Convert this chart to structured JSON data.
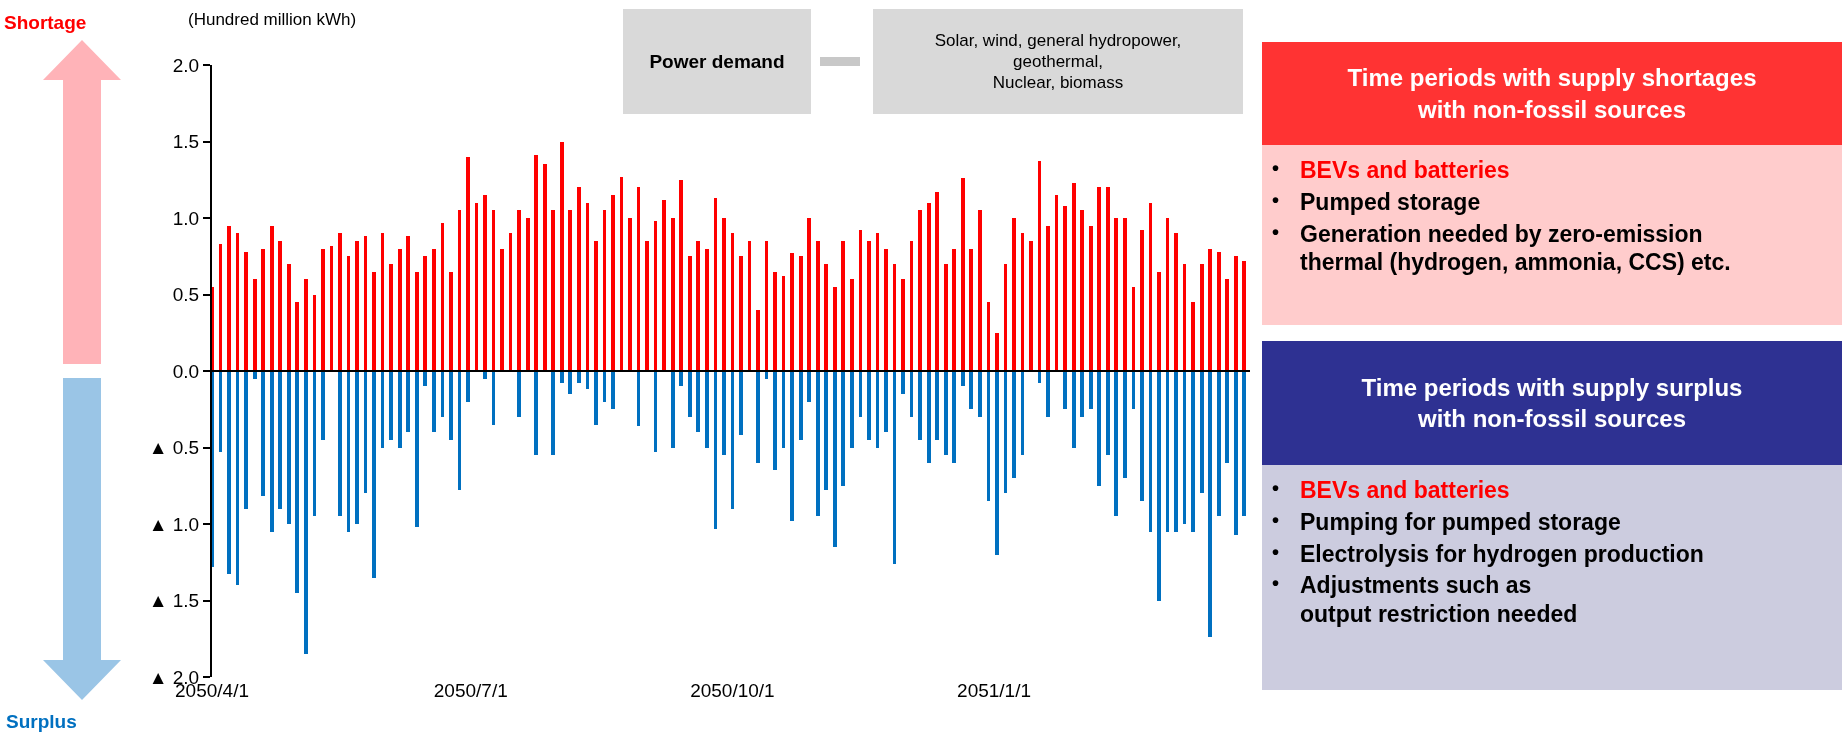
{
  "chart_data": {
    "type": "bar",
    "ylabel": "(Hundred million kWh)",
    "x": [
      "2050-04-01",
      "2050-04-04",
      "2050-04-07",
      "2050-04-10",
      "2050-04-13",
      "2050-04-16",
      "2050-04-19",
      "2050-04-22",
      "2050-04-25",
      "2050-04-28",
      "2050-05-01",
      "2050-05-04",
      "2050-05-07",
      "2050-05-10",
      "2050-05-13",
      "2050-05-16",
      "2050-05-19",
      "2050-05-22",
      "2050-05-25",
      "2050-05-28",
      "2050-05-31",
      "2050-06-03",
      "2050-06-06",
      "2050-06-09",
      "2050-06-12",
      "2050-06-15",
      "2050-06-18",
      "2050-06-21",
      "2050-06-24",
      "2050-06-27",
      "2050-06-30",
      "2050-07-03",
      "2050-07-06",
      "2050-07-09",
      "2050-07-12",
      "2050-07-15",
      "2050-07-18",
      "2050-07-21",
      "2050-07-24",
      "2050-07-27",
      "2050-07-30",
      "2050-08-02",
      "2050-08-05",
      "2050-08-08",
      "2050-08-11",
      "2050-08-14",
      "2050-08-17",
      "2050-08-20",
      "2050-08-23",
      "2050-08-26",
      "2050-08-29",
      "2050-09-01",
      "2050-09-04",
      "2050-09-07",
      "2050-09-10",
      "2050-09-13",
      "2050-09-16",
      "2050-09-19",
      "2050-09-22",
      "2050-09-25",
      "2050-09-28",
      "2050-10-01",
      "2050-10-04",
      "2050-10-07",
      "2050-10-10",
      "2050-10-13",
      "2050-10-16",
      "2050-10-19",
      "2050-10-22",
      "2050-10-25",
      "2050-10-28",
      "2050-10-31",
      "2050-11-03",
      "2050-11-06",
      "2050-11-09",
      "2050-11-12",
      "2050-11-15",
      "2050-11-18",
      "2050-11-21",
      "2050-11-24",
      "2050-11-27",
      "2050-11-30",
      "2050-12-03",
      "2050-12-06",
      "2050-12-09",
      "2050-12-12",
      "2050-12-15",
      "2050-12-18",
      "2050-12-21",
      "2050-12-24",
      "2050-12-27",
      "2050-12-30",
      "2051-01-02",
      "2051-01-05",
      "2051-01-08",
      "2051-01-11",
      "2051-01-14",
      "2051-01-17",
      "2051-01-20",
      "2051-01-23",
      "2051-01-26",
      "2051-01-29",
      "2051-02-01",
      "2051-02-04",
      "2051-02-07",
      "2051-02-10",
      "2051-02-13",
      "2051-02-16",
      "2051-02-19",
      "2051-02-22",
      "2051-02-25",
      "2051-02-28",
      "2051-03-03",
      "2051-03-06",
      "2051-03-09",
      "2051-03-12",
      "2051-03-15",
      "2051-03-18",
      "2051-03-21",
      "2051-03-24",
      "2051-03-27",
      "2051-03-30"
    ],
    "series": [
      {
        "color": "#ff0000",
        "values": [
          0.55,
          0.83,
          0.95,
          0.9,
          0.78,
          0.6,
          0.8,
          0.95,
          0.85,
          0.7,
          0.45,
          0.6,
          0.5,
          0.8,
          0.82,
          0.9,
          0.75,
          0.85,
          0.88,
          0.65,
          0.9,
          0.7,
          0.8,
          0.88,
          0.65,
          0.75,
          0.8,
          0.97,
          0.65,
          1.05,
          1.4,
          1.1,
          1.15,
          1.05,
          0.8,
          0.9,
          1.05,
          1.0,
          1.41,
          1.35,
          1.05,
          1.5,
          1.05,
          1.2,
          1.1,
          0.85,
          1.05,
          1.15,
          1.27,
          1.0,
          1.2,
          0.85,
          0.98,
          1.12,
          1.0,
          1.25,
          0.75,
          0.85,
          0.8,
          1.13,
          1.0,
          0.9,
          0.75,
          0.85,
          0.4,
          0.85,
          0.65,
          0.62,
          0.77,
          0.75,
          1.0,
          0.85,
          0.7,
          0.55,
          0.85,
          0.6,
          0.92,
          0.85,
          0.9,
          0.8,
          0.7,
          0.6,
          0.85,
          1.05,
          1.1,
          1.17,
          0.7,
          0.8,
          1.26,
          0.8,
          1.05,
          0.45,
          0.25,
          0.7,
          1.0,
          0.9,
          0.85,
          1.37,
          0.95,
          1.15,
          1.08,
          1.23,
          1.05,
          0.95,
          1.2,
          1.2,
          1.0,
          1.0,
          0.55,
          0.92,
          1.1,
          0.65,
          1.0,
          0.9,
          0.7,
          0.45,
          0.7,
          0.8,
          0.78,
          0.6,
          0.75,
          0.72
        ]
      },
      {
        "color": "#0070c0",
        "values": [
          -1.28,
          -0.53,
          -1.33,
          -1.4,
          -0.9,
          -0.05,
          -0.82,
          -1.05,
          -0.9,
          -1.0,
          -1.45,
          -1.85,
          -0.95,
          -0.45,
          0,
          -0.95,
          -1.05,
          -1.0,
          -0.8,
          -1.35,
          -0.5,
          -0.45,
          -0.5,
          -0.4,
          -1.02,
          -0.1,
          -0.4,
          -0.3,
          -0.45,
          -0.78,
          -0.2,
          0,
          -0.05,
          -0.35,
          0,
          0,
          -0.3,
          0,
          -0.55,
          0,
          -0.55,
          -0.08,
          -0.15,
          -0.08,
          -0.12,
          -0.35,
          -0.2,
          -0.25,
          0,
          0,
          -0.36,
          0,
          -0.53,
          0,
          -0.5,
          -0.1,
          -0.3,
          -0.4,
          -0.5,
          -1.03,
          -0.55,
          -0.9,
          -0.42,
          0,
          -0.6,
          -0.05,
          -0.65,
          -0.5,
          -0.98,
          -0.45,
          -0.2,
          -0.95,
          -0.78,
          -1.15,
          -0.75,
          -0.5,
          -0.3,
          -0.45,
          -0.5,
          -0.4,
          -1.26,
          -0.15,
          -0.3,
          -0.45,
          -0.6,
          -0.45,
          -0.55,
          -0.6,
          -0.1,
          -0.25,
          -0.3,
          -0.85,
          -1.2,
          -0.8,
          -0.7,
          -0.55,
          0,
          -0.08,
          -0.3,
          0,
          -0.25,
          -0.5,
          -0.3,
          -0.25,
          -0.75,
          -0.55,
          -0.95,
          -0.7,
          -0.25,
          -0.85,
          -1.05,
          -1.5,
          -1.05,
          -1.05,
          -1.0,
          -1.05,
          -0.8,
          -1.74,
          -0.95,
          -0.6,
          -1.07,
          -0.95
        ]
      }
    ],
    "xlim": [
      "2050-04-01",
      "2051-04-01"
    ],
    "xticks": [
      {
        "value": "2050-04-01",
        "label": "2050/4/1"
      },
      {
        "value": "2050-07-01",
        "label": "2050/7/1"
      },
      {
        "value": "2050-10-01",
        "label": "2050/10/1"
      },
      {
        "value": "2051-01-01",
        "label": "2051/1/1"
      }
    ],
    "ylim": [
      -2,
      2
    ],
    "yticks": [
      {
        "value": -2,
        "label": "▲ 2.0"
      },
      {
        "value": -1.5,
        "label": "▲ 1.5"
      },
      {
        "value": -1,
        "label": "▲ 1.0"
      },
      {
        "value": -0.5,
        "label": "▲ 0.5"
      },
      {
        "value": 0,
        "label": "0.0"
      },
      {
        "value": 0.5,
        "label": "0.5"
      },
      {
        "value": 1,
        "label": "1.0"
      },
      {
        "value": 1.5,
        "label": "1.5"
      },
      {
        "value": 2,
        "label": "2.0"
      }
    ],
    "grid": false,
    "stacked": true,
    "ref_lines": [
      {
        "axis": "y",
        "value": 0,
        "color": "#000000"
      }
    ],
    "annotations": [
      "Shortage",
      "Surplus",
      "Power demand",
      "Solar, wind, general hydropower,\ngeothermal,\nNuclear, biomass",
      "Time periods with supply shortages\nwith non-fossil sources",
      "•\tBEVs and batteries",
      "•\tPumped storage",
      "•\tGeneration needed by zero-emission\nthermal (hydrogen, ammonia, CCS) etc.",
      "Time periods with supply surplus\nwith non-fossil sources",
      "•\tBEVs and batteries",
      "•\tPumping for pumped storage",
      "•\tElectrolysis for hydrogen production",
      "•\tAdjustments such as\noutput restriction needed"
    ]
  }
}
